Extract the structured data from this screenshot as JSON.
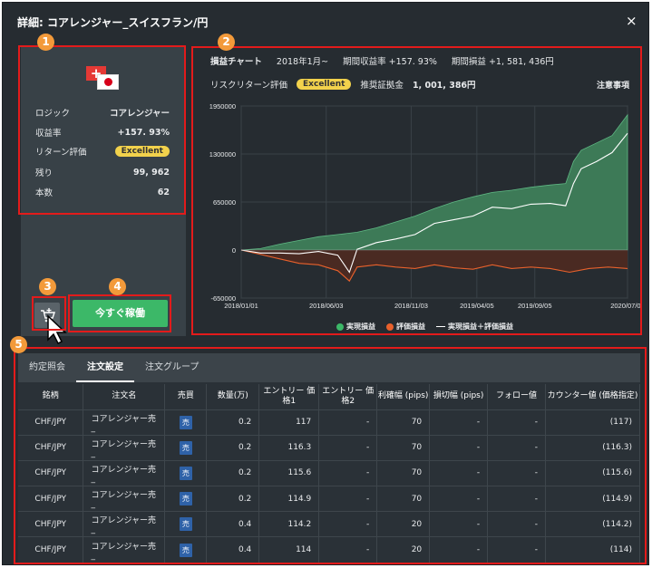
{
  "window": {
    "title": "詳細: コアレンジャー_スイスフラン/円",
    "close": "×"
  },
  "left": {
    "rows": [
      {
        "label": "ロジック",
        "value": "コアレンジャー"
      },
      {
        "label": "収益率",
        "value": "+157. 93%"
      },
      {
        "label": "リターン評価",
        "value": "Excellent"
      },
      {
        "label": "残り",
        "value": "99, 962"
      },
      {
        "label": "本数",
        "value": "62"
      }
    ],
    "flag_symbol": "+",
    "run_label": "今すぐ稼働"
  },
  "chart_panel": {
    "title": "損益チャート",
    "period": "2018年1月~",
    "return_label": "期間収益率",
    "return_value": "+157. 93%",
    "pl_label": "期間損益",
    "pl_value": "+1, 581, 436円",
    "risk_label": "リスクリターン評価",
    "risk_value": "Excellent",
    "margin_label": "推奨証拠金",
    "margin_value": "1, 001, 386円",
    "notice": "注意事項"
  },
  "chart_data": {
    "type": "area",
    "x_ticks": [
      "2018/01/01",
      "2018/06/03",
      "2018/11/03",
      "2019/04/05",
      "2019/09/05",
      "2020/07/06"
    ],
    "y_ticks": [
      "1950000",
      "1300000",
      "650000",
      "0",
      "-650000"
    ],
    "ylim": [
      -650000,
      1950000
    ],
    "grid": true,
    "legend_position": "bottom",
    "series": [
      {
        "name": "実現損益",
        "color": "#3d8a5f",
        "points": [
          [
            0,
            0
          ],
          [
            5,
            20000
          ],
          [
            10,
            80000
          ],
          [
            15,
            130000
          ],
          [
            20,
            180000
          ],
          [
            25,
            210000
          ],
          [
            30,
            240000
          ],
          [
            35,
            300000
          ],
          [
            40,
            380000
          ],
          [
            45,
            460000
          ],
          [
            50,
            560000
          ],
          [
            55,
            650000
          ],
          [
            60,
            720000
          ],
          [
            65,
            780000
          ],
          [
            70,
            810000
          ],
          [
            75,
            850000
          ],
          [
            80,
            880000
          ],
          [
            84,
            900000
          ],
          [
            86,
            1200000
          ],
          [
            88,
            1350000
          ],
          [
            92,
            1450000
          ],
          [
            96,
            1550000
          ],
          [
            100,
            1830000
          ]
        ]
      },
      {
        "name": "評価損益",
        "color": "#e8612c",
        "points": [
          [
            0,
            0
          ],
          [
            5,
            -60000
          ],
          [
            10,
            -120000
          ],
          [
            15,
            -180000
          ],
          [
            20,
            -200000
          ],
          [
            25,
            -280000
          ],
          [
            28,
            -420000
          ],
          [
            30,
            -230000
          ],
          [
            35,
            -200000
          ],
          [
            40,
            -230000
          ],
          [
            45,
            -250000
          ],
          [
            50,
            -200000
          ],
          [
            55,
            -240000
          ],
          [
            60,
            -260000
          ],
          [
            65,
            -200000
          ],
          [
            70,
            -250000
          ],
          [
            75,
            -230000
          ],
          [
            80,
            -250000
          ],
          [
            85,
            -300000
          ],
          [
            90,
            -250000
          ],
          [
            95,
            -230000
          ],
          [
            100,
            -250000
          ]
        ]
      },
      {
        "name": "実現損益＋評価損益",
        "color": "#ffffff",
        "points": [
          [
            0,
            0
          ],
          [
            5,
            -40000
          ],
          [
            10,
            -40000
          ],
          [
            15,
            -50000
          ],
          [
            20,
            -20000
          ],
          [
            25,
            -70000
          ],
          [
            28,
            -300000
          ],
          [
            30,
            10000
          ],
          [
            35,
            100000
          ],
          [
            40,
            150000
          ],
          [
            45,
            210000
          ],
          [
            50,
            360000
          ],
          [
            55,
            410000
          ],
          [
            60,
            460000
          ],
          [
            65,
            580000
          ],
          [
            70,
            560000
          ],
          [
            75,
            620000
          ],
          [
            80,
            630000
          ],
          [
            84,
            600000
          ],
          [
            86,
            900000
          ],
          [
            88,
            1100000
          ],
          [
            92,
            1200000
          ],
          [
            96,
            1320000
          ],
          [
            100,
            1580000
          ]
        ]
      }
    ]
  },
  "table": {
    "tabs": [
      "約定照会",
      "注文設定",
      "注文グループ"
    ],
    "active_tab": 1,
    "headers": [
      "銘柄",
      "注文名",
      "売買",
      "数量(万)",
      "エントリー 価格1",
      "エントリー 価格2",
      "利確幅 (pips)",
      "損切幅 (pips)",
      "フォロー値",
      "カウンター値 (価格指定)"
    ],
    "rows": [
      [
        "CHF/JPY",
        "コアレンジャー売_",
        "売",
        "0.2",
        "117",
        "-",
        "70",
        "-",
        "-",
        "(117)"
      ],
      [
        "CHF/JPY",
        "コアレンジャー売_",
        "売",
        "0.2",
        "116.3",
        "-",
        "70",
        "-",
        "-",
        "(116.3)"
      ],
      [
        "CHF/JPY",
        "コアレンジャー売_",
        "売",
        "0.2",
        "115.6",
        "-",
        "70",
        "-",
        "-",
        "(115.6)"
      ],
      [
        "CHF/JPY",
        "コアレンジャー売_",
        "売",
        "0.2",
        "114.9",
        "-",
        "70",
        "-",
        "-",
        "(114.9)"
      ],
      [
        "CHF/JPY",
        "コアレンジャー売_",
        "売",
        "0.4",
        "114.2",
        "-",
        "20",
        "-",
        "-",
        "(114.2)"
      ],
      [
        "CHF/JPY",
        "コアレンジャー売_",
        "売",
        "0.4",
        "114",
        "-",
        "20",
        "-",
        "-",
        "(114)"
      ]
    ]
  },
  "markers": [
    "1",
    "2",
    "3",
    "4",
    "5"
  ],
  "colors": {
    "accent": "#e31b1b",
    "marker": "#f39a3a",
    "run_button": "#3cb868",
    "excellent": "#f2d24c"
  }
}
